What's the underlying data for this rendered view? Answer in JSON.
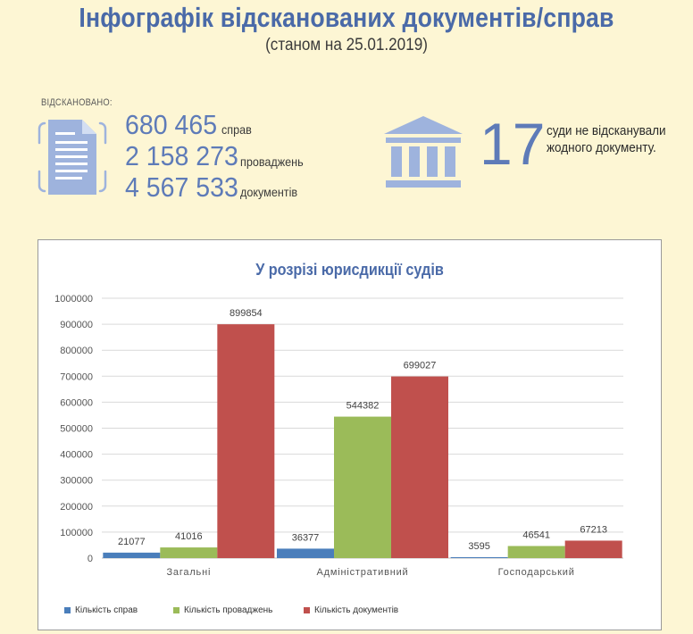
{
  "header": {
    "title": "Інфографік відсканованих документів/справ",
    "subtitle": "(станом на 25.01.2019)"
  },
  "scanned": {
    "label": "ВІДСКАНОВАНО:",
    "icon": "document-icon",
    "stats": [
      {
        "value": "680 465",
        "unit": "справ"
      },
      {
        "value": "2 158 273",
        "unit": "проваджень"
      },
      {
        "value": "4 567 533",
        "unit": "документів"
      }
    ]
  },
  "courts": {
    "icon": "courthouse-icon",
    "count": "17",
    "text_line1": "суди не відсканували",
    "text_line2": "жодного документу."
  },
  "colors": {
    "accent": "#5e7bb8",
    "series": [
      "#4a7ebb",
      "#9bbb59",
      "#c0504d"
    ],
    "background": "#fdf6d4"
  },
  "chart_data": {
    "type": "bar",
    "title": "У розрізі юрисдикції судів",
    "categories": [
      "Загальні",
      "Адміністративний",
      "Господарський"
    ],
    "series": [
      {
        "name": "Кількість справ",
        "values": [
          21077,
          36377,
          3595
        ]
      },
      {
        "name": "Кількість проваджень",
        "values": [
          41016,
          544382,
          46541
        ]
      },
      {
        "name": "Кількість документів",
        "values": [
          899854,
          699027,
          67213
        ]
      }
    ],
    "ylim": [
      0,
      1000000
    ],
    "yticks": [
      "0",
      "100000",
      "200000",
      "300000",
      "400000",
      "500000",
      "600000",
      "700000",
      "800000",
      "900000",
      "1000000"
    ],
    "grid": true,
    "legend": "bottom-left"
  }
}
